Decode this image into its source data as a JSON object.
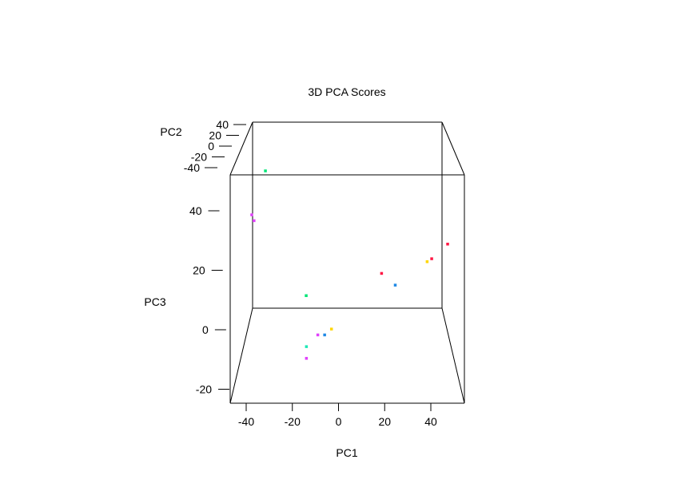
{
  "chart_data": {
    "type": "scatter",
    "title": "3D PCA Scores",
    "xlabel": "PC1",
    "ylabel": "PC2",
    "zlabel": "PC3",
    "x_ticks": [
      "-40",
      "-20",
      "0",
      "20",
      "40"
    ],
    "y_ticks": [
      "-40",
      "-20",
      "0",
      "20",
      "40"
    ],
    "z_ticks": [
      "-20",
      "0",
      "20",
      "40"
    ],
    "xlim": [
      -50,
      55
    ],
    "ylim": [
      -45,
      45
    ],
    "zlim": [
      -25,
      55
    ],
    "grid": false,
    "points": [
      {
        "x": -32,
        "y": -40,
        "z": 54,
        "color": "#00e676"
      },
      {
        "x": -38,
        "y": -40,
        "z": 39,
        "color": "#e040fb"
      },
      {
        "x": -37,
        "y": -40,
        "z": 37,
        "color": "#e040fb"
      },
      {
        "x": 48,
        "y": -40,
        "z": 29,
        "color": "#ff1744"
      },
      {
        "x": 41,
        "y": -40,
        "z": 24,
        "color": "#ff1744"
      },
      {
        "x": 39,
        "y": -40,
        "z": 23,
        "color": "#ffd600"
      },
      {
        "x": 19,
        "y": -40,
        "z": 19,
        "color": "#ff1744"
      },
      {
        "x": 25,
        "y": -40,
        "z": 15,
        "color": "#1e88e5"
      },
      {
        "x": -17,
        "y": 40,
        "z": 8,
        "color": "#00e676"
      },
      {
        "x": -3,
        "y": -40,
        "z": 0,
        "color": "#ffd600"
      },
      {
        "x": -9,
        "y": -40,
        "z": -2,
        "color": "#e040fb"
      },
      {
        "x": -6,
        "y": -40,
        "z": -2,
        "color": "#1e88e5"
      },
      {
        "x": -14,
        "y": -40,
        "z": -6,
        "color": "#1de9b6"
      },
      {
        "x": -14,
        "y": -40,
        "z": -10,
        "color": "#e040fb"
      }
    ]
  }
}
